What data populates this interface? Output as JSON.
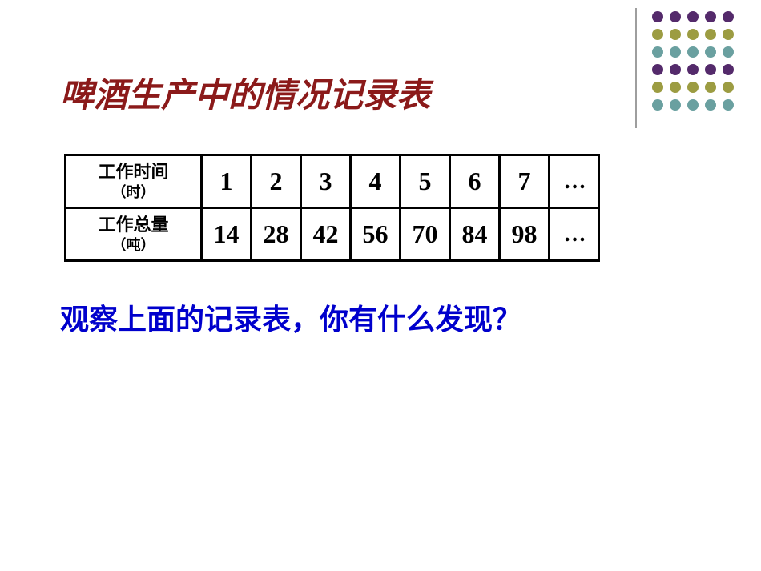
{
  "title": {
    "text": "啤酒生产中的情况记录表",
    "color": "#8b1a1a"
  },
  "table": {
    "rows": [
      {
        "label": "工作时间",
        "unit": "（时）",
        "values": [
          "1",
          "2",
          "3",
          "4",
          "5",
          "6",
          "7"
        ],
        "ellipsis": "…"
      },
      {
        "label": "工作总量",
        "unit": "（吨）",
        "values": [
          "14",
          "28",
          "42",
          "56",
          "70",
          "84",
          "98"
        ],
        "ellipsis": "…"
      }
    ],
    "border_color": "#000000",
    "text_color": "#000000"
  },
  "question": {
    "text": "观察上面的记录表，你有什么发现？",
    "color": "#0000cc"
  },
  "decoration": {
    "dot_colors": [
      [
        "#542a6b",
        "#542a6b",
        "#542a6b",
        "#542a6b",
        "#542a6b"
      ],
      [
        "#9c9c42",
        "#9c9c42",
        "#9c9c42",
        "#9c9c42",
        "#9c9c42"
      ],
      [
        "#6aa0a0",
        "#6aa0a0",
        "#6aa0a0",
        "#6aa0a0",
        "#6aa0a0"
      ],
      [
        "#542a6b",
        "#542a6b",
        "#542a6b",
        "#542a6b",
        "#542a6b"
      ],
      [
        "#9c9c42",
        "#9c9c42",
        "#9c9c42",
        "#9c9c42",
        "#9c9c42"
      ],
      [
        "#6aa0a0",
        "#6aa0a0",
        "#6aa0a0",
        "#6aa0a0",
        "#6aa0a0"
      ]
    ],
    "divider_color": "#9e9e9e"
  }
}
